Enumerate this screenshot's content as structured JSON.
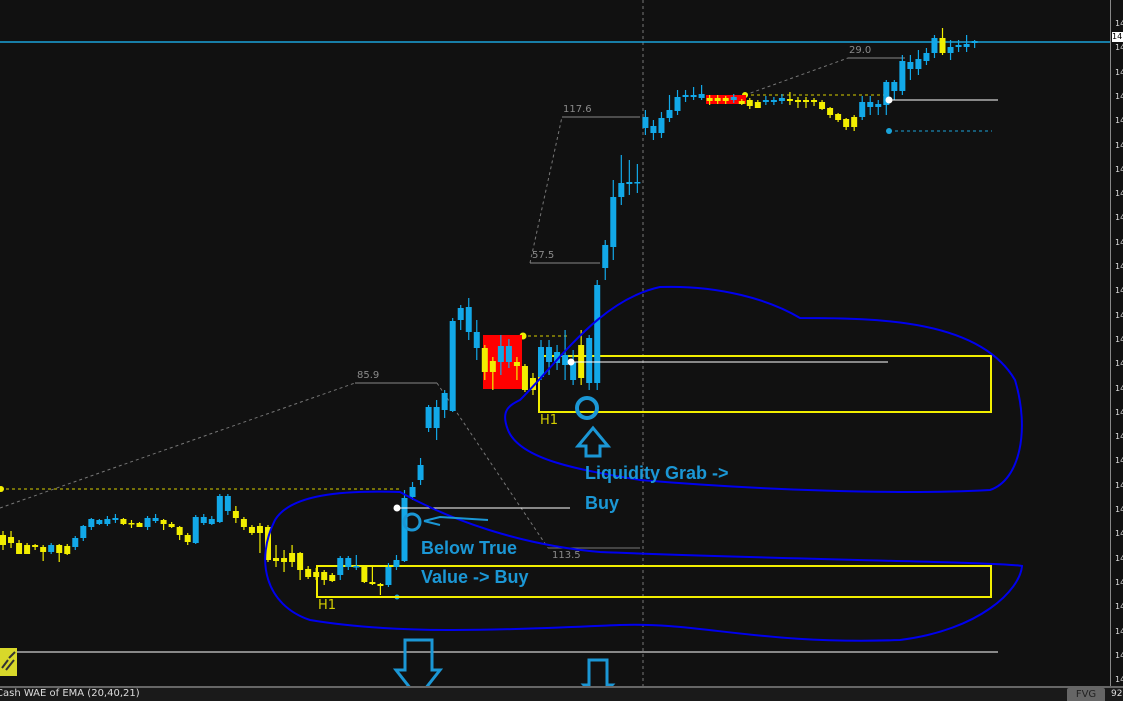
{
  "chart_data": {
    "type": "candlestick",
    "series_colors": {
      "up": "#12a8e8",
      "down": "#f2ee00"
    },
    "candles": [
      [
        14145,
        14149,
        14130,
        14135
      ],
      [
        14143,
        14149,
        14132,
        14137
      ],
      [
        14137,
        14140,
        14126,
        14126
      ],
      [
        14135,
        14137,
        14126,
        14126
      ],
      [
        14135,
        14136,
        14130,
        14133
      ],
      [
        14133,
        14135,
        14119,
        14128
      ],
      [
        14128,
        14137,
        14126,
        14135
      ],
      [
        14135,
        14136,
        14118,
        14127
      ],
      [
        14134,
        14136,
        14125,
        14126
      ],
      [
        14133,
        14144,
        14130,
        14142
      ],
      [
        14142,
        14155,
        14139,
        14154
      ],
      [
        14153,
        14162,
        14150,
        14161
      ],
      [
        14156,
        14161,
        14155,
        14160
      ],
      [
        14156,
        14164,
        14154,
        14161
      ],
      [
        14160,
        14166,
        14157,
        14162
      ],
      [
        14161,
        14162,
        14155,
        14156
      ],
      [
        14157,
        14160,
        14152,
        14156
      ],
      [
        14157,
        14158,
        14153,
        14153
      ],
      [
        14153,
        14164,
        14150,
        14162
      ],
      [
        14159,
        14166,
        14157,
        14162
      ],
      [
        14160,
        14161,
        14150,
        14156
      ],
      [
        14156,
        14158,
        14152,
        14153
      ],
      [
        14153,
        14154,
        14140,
        14145
      ],
      [
        14145,
        14147,
        14135,
        14138
      ],
      [
        14137,
        14165,
        14136,
        14163
      ],
      [
        14157,
        14166,
        14155,
        14163
      ],
      [
        14156,
        14164,
        14155,
        14161
      ],
      [
        14158,
        14186,
        14157,
        14184
      ],
      [
        14169,
        14186,
        14165,
        14184
      ],
      [
        14169,
        14174,
        14157,
        14162
      ],
      [
        14161,
        14163,
        14150,
        14153
      ],
      [
        14153,
        14155,
        14145,
        14147
      ],
      [
        14154,
        14157,
        14127,
        14147
      ],
      [
        14153,
        14155,
        14118,
        14120
      ],
      [
        14122,
        14135,
        14113,
        14119
      ],
      [
        14122,
        14130,
        14108,
        14118
      ],
      [
        14127,
        14135,
        14113,
        14118
      ],
      [
        14127,
        14128,
        14100,
        14110
      ],
      [
        14111,
        14114,
        14101,
        14103
      ],
      [
        14108,
        14112,
        14100,
        14103
      ],
      [
        14108,
        14110,
        14095,
        14100
      ],
      [
        14105,
        14107,
        14098,
        14099
      ],
      [
        14105,
        14124,
        14100,
        14122
      ],
      [
        14113,
        14124,
        14110,
        14122
      ],
      [
        14113,
        14125,
        14110,
        14114
      ],
      [
        14113,
        14115,
        14097,
        14098
      ],
      [
        14098,
        14113,
        14095,
        14096
      ],
      [
        14096,
        14097,
        14085,
        14094
      ],
      [
        14095,
        14117,
        14093,
        14113
      ],
      [
        14113,
        14125,
        14110,
        14120
      ],
      [
        14119,
        14190,
        14118,
        14182
      ],
      [
        14183,
        14198,
        14180,
        14193
      ],
      [
        14200,
        14222,
        14195,
        14215
      ],
      [
        14252,
        14275,
        14248,
        14273
      ],
      [
        14252,
        14280,
        14240,
        14273
      ],
      [
        14270,
        14290,
        14262,
        14287
      ],
      [
        14269,
        14362,
        14268,
        14359
      ],
      [
        14360,
        14375,
        14350,
        14372
      ],
      [
        14348,
        14382,
        14340,
        14373
      ],
      [
        14332,
        14360,
        14320,
        14348
      ],
      [
        14332,
        14335,
        14300,
        14308
      ],
      [
        14319,
        14323,
        14290,
        14308
      ],
      [
        14318,
        14345,
        14305,
        14334
      ],
      [
        14318,
        14341,
        14312,
        14334
      ],
      [
        14318,
        14323,
        14300,
        14314
      ],
      [
        14314,
        14316,
        14288,
        14290
      ],
      [
        14302,
        14307,
        14285,
        14290
      ],
      [
        14303,
        14340,
        14300,
        14333
      ],
      [
        14318,
        14340,
        14305,
        14333
      ],
      [
        14317,
        14335,
        14310,
        14328
      ],
      [
        14315,
        14350,
        14300,
        14325
      ],
      [
        14300,
        14330,
        14295,
        14318
      ],
      [
        14335,
        14350,
        14295,
        14302
      ],
      [
        14297,
        14345,
        14290,
        14342
      ],
      [
        14297,
        14400,
        14290,
        14395
      ],
      [
        14412,
        14440,
        14400,
        14435
      ],
      [
        14433,
        14500,
        14420,
        14483
      ],
      [
        14483,
        14525,
        14475,
        14497
      ],
      [
        14496,
        14520,
        14485,
        14498
      ],
      [
        14497,
        14516,
        14487,
        14498
      ],
      [
        14552,
        14570,
        14545,
        14563
      ],
      [
        14547,
        14560,
        14540,
        14554
      ],
      [
        14547,
        14568,
        14542,
        14562
      ],
      [
        14562,
        14585,
        14558,
        14570
      ],
      [
        14569,
        14590,
        14565,
        14583
      ],
      [
        14583,
        14590,
        14578,
        14585
      ],
      [
        14583,
        14593,
        14580,
        14585
      ],
      [
        14582,
        14595,
        14580,
        14586
      ],
      [
        14582,
        14585,
        14575,
        14579
      ],
      [
        14582,
        14585,
        14576,
        14579
      ],
      [
        14582,
        14584,
        14576,
        14579
      ],
      [
        14580,
        14586,
        14577,
        14583
      ],
      [
        14579,
        14581,
        14575,
        14576
      ],
      [
        14580,
        14582,
        14571,
        14574
      ],
      [
        14578,
        14580,
        14572,
        14572
      ],
      [
        14578,
        14584,
        14575,
        14580
      ],
      [
        14578,
        14583,
        14575,
        14580
      ],
      [
        14579,
        14586,
        14576,
        14582
      ],
      [
        14581,
        14588,
        14575,
        14579
      ],
      [
        14580,
        14583,
        14572,
        14578
      ],
      [
        14580,
        14583,
        14572,
        14578
      ],
      [
        14580,
        14582,
        14574,
        14578
      ],
      [
        14578,
        14580,
        14570,
        14571
      ],
      [
        14572,
        14573,
        14562,
        14565
      ],
      [
        14566,
        14567,
        14558,
        14560
      ],
      [
        14561,
        14562,
        14550,
        14553
      ],
      [
        14563,
        14565,
        14549,
        14553
      ],
      [
        14563,
        14584,
        14560,
        14578
      ],
      [
        14573,
        14584,
        14565,
        14578
      ],
      [
        14573,
        14580,
        14565,
        14576
      ],
      [
        14575,
        14600,
        14565,
        14598
      ],
      [
        14589,
        14600,
        14580,
        14598
      ],
      [
        14589,
        14625,
        14585,
        14619
      ],
      [
        14611,
        14625,
        14600,
        14618
      ],
      [
        14611,
        14630,
        14605,
        14621
      ],
      [
        14619,
        14632,
        14615,
        14627
      ],
      [
        14627,
        14645,
        14622,
        14642
      ],
      [
        14642,
        14652,
        14625,
        14627
      ],
      [
        14627,
        14640,
        14620,
        14633
      ],
      [
        14633,
        14640,
        14628,
        14635
      ],
      [
        14633,
        14645,
        14628,
        14636
      ],
      [
        14637,
        14640,
        14632,
        14639
      ]
    ],
    "y_tick_labels": [
      "14",
      "14",
      "14",
      "14",
      "14",
      "14",
      "14",
      "14",
      "14",
      "14",
      "14",
      "14",
      "14",
      "14",
      "14",
      "14",
      "14",
      "14",
      "14",
      "14",
      "14",
      "14",
      "14",
      "14",
      "14",
      "14",
      "14",
      "14"
    ],
    "current_price_label": "14",
    "swing_labels": [
      "85.9",
      "117.6",
      "57.5",
      "113.5",
      "29.0"
    ],
    "zone_labels": [
      "H1",
      "H1"
    ],
    "zone_color": "#f2ee00",
    "fvg_color": "#ff0000",
    "current_price_line_color": "#1aa3d9"
  },
  "annotations": {
    "liquidity_line1": "Liquidity Grab ->",
    "liquidity_line2": "Buy",
    "below_line1": "Below True",
    "below_line2": "Value -> Buy",
    "color": "#1b97d5",
    "outline_color": "#0000ee"
  },
  "bottom_bar": {
    "indicator": "Cash WAE of EMA (20,40,21)",
    "fvg_button": "FVG",
    "volume_label": "92"
  }
}
